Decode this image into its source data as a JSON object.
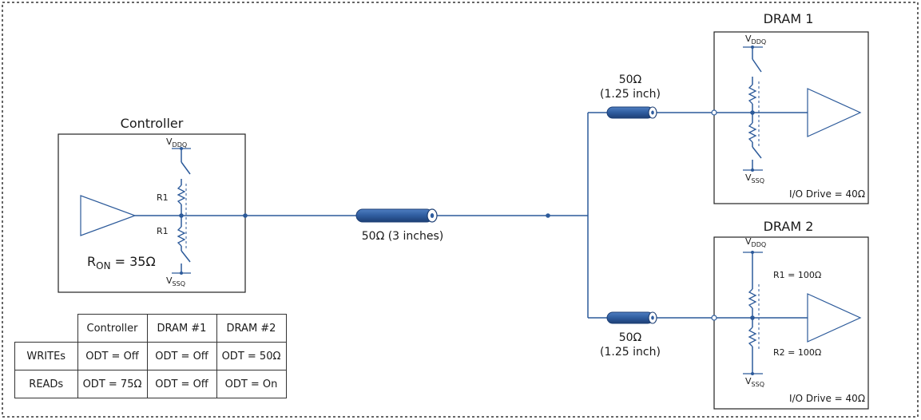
{
  "controller": {
    "title": "Controller",
    "vddq": "V",
    "vddq_sub": "DDQ",
    "vssq": "V",
    "vssq_sub": "SSQ",
    "r1_top": "R1",
    "r1_bottom": "R1",
    "ron_main": "R",
    "ron_sub": "ON",
    "ron_value": " = 35Ω"
  },
  "main_line": {
    "label": "50Ω  (3 inches)"
  },
  "branch_top": {
    "impedance": "50Ω",
    "length": "(1.25 inch)"
  },
  "branch_bottom": {
    "impedance": "50Ω",
    "length": "(1.25 inch)"
  },
  "dram1": {
    "title": "DRAM 1",
    "vddq": "V",
    "vddq_sub": "DDQ",
    "vssq": "V",
    "vssq_sub": "SSQ",
    "io_drive": "I/O Drive = 40Ω"
  },
  "dram2": {
    "title": "DRAM 2",
    "vddq": "V",
    "vddq_sub": "DDQ",
    "vssq": "V",
    "vssq_sub": "SSQ",
    "r1": "R1 = 100Ω",
    "r2": "R2 = 100Ω",
    "io_drive": "I/O Drive = 40Ω"
  },
  "odt_table": {
    "headers": [
      "Controller",
      "DRAM #1",
      "DRAM #2"
    ],
    "rows": [
      {
        "label": "WRITEs",
        "cells": [
          "ODT = Off",
          "ODT = Off",
          "ODT = 50Ω"
        ]
      },
      {
        "label": "READs",
        "cells": [
          "ODT = 75Ω",
          "ODT = Off",
          "ODT = On"
        ]
      }
    ]
  }
}
